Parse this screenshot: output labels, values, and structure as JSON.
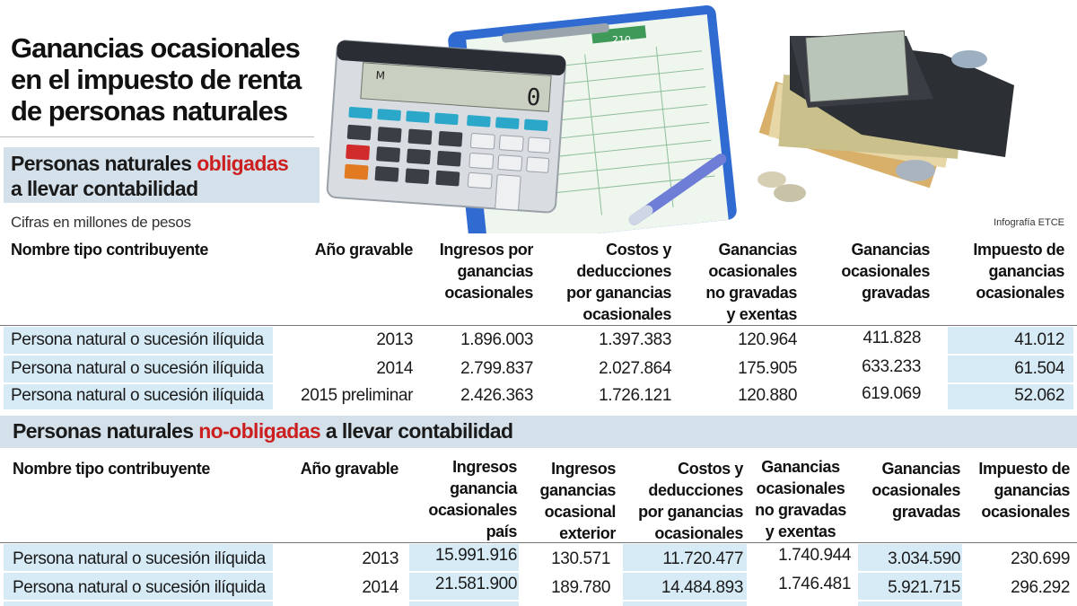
{
  "title": "Ganancias ocasionales en el impuesto de renta de personas naturales",
  "title_lines": [
    "Ganancias ocasionales",
    "en el impuesto de renta",
    "de personas naturales"
  ],
  "credit": "Infografía ETCE",
  "units_note": "Cifras en millones de pesos",
  "calculator_display": "0",
  "calculator_mode": "M",
  "form_number": "210",
  "section1": {
    "title_pre": "Personas naturales ",
    "title_red": "obligadas",
    "title_post": "a llevar contabilidad",
    "headers": {
      "tipo": "Nombre tipo contribuyente",
      "anio": "Año gravable",
      "ingresos": [
        "Ingresos por",
        "ganancias",
        "ocasionales"
      ],
      "costos": [
        "Costos y",
        "deducciones",
        "por ganancias",
        "ocasionales"
      ],
      "no_gravadas": [
        "Ganancias",
        "ocasionales",
        "no gravadas",
        "y exentas"
      ],
      "gravadas": [
        "Ganancias",
        "ocasionales",
        "gravadas"
      ],
      "impuesto": [
        "Impuesto de",
        "ganancias",
        "ocasionales"
      ]
    },
    "rows": [
      {
        "tipo": "Persona natural o sucesión ilíquida",
        "anio": "2013",
        "ingresos": "1.896.003",
        "costos": "1.397.383",
        "no_gravadas": "120.964",
        "gravadas": "411.828",
        "impuesto": "41.012"
      },
      {
        "tipo": "Persona natural o sucesión ilíquida",
        "anio": "2014",
        "ingresos": "2.799.837",
        "costos": "2.027.864",
        "no_gravadas": "175.905",
        "gravadas": "633.233",
        "impuesto": "61.504"
      },
      {
        "tipo": "Persona natural o sucesión ilíquida",
        "anio": "2015 preliminar",
        "ingresos": "2.426.363",
        "costos": "1.726.121",
        "no_gravadas": "120.880",
        "gravadas": "619.069",
        "impuesto": "52.062"
      }
    ]
  },
  "section2": {
    "title_pre": "Personas naturales ",
    "title_red": "no-obligadas",
    "title_post": " a llevar contabilidad",
    "headers": {
      "tipo": "Nombre tipo contribuyente",
      "anio": "Año gravable",
      "ingresos_pais": [
        "Ingresos",
        "ganancia",
        "ocasionales",
        "país"
      ],
      "ingresos_ext": [
        "Ingresos",
        "ganancias",
        "ocasional",
        "exterior"
      ],
      "costos": [
        "Costos y",
        "deducciones",
        "por ganancias",
        "ocasionales"
      ],
      "no_gravadas": [
        "Ganancias",
        "ocasionales",
        "no gravadas",
        "y exentas"
      ],
      "gravadas": [
        "Ganancias",
        "ocasionales",
        "gravadas"
      ],
      "impuesto": [
        "Impuesto de",
        "ganancias",
        "ocasionales"
      ]
    },
    "rows": [
      {
        "tipo": "Persona natural o sucesión ilíquida",
        "anio": "2013",
        "ingresos_pais": "15.991.916",
        "ingresos_ext": "130.571",
        "costos": "11.720.477",
        "no_gravadas": "1.740.944",
        "gravadas": "3.034.590",
        "impuesto": "230.699"
      },
      {
        "tipo": "Persona natural o sucesión ilíquida",
        "anio": "2014",
        "ingresos_pais": "21.581.900",
        "ingresos_ext": "189.780",
        "costos": "14.484.893",
        "no_gravadas": "1.746.481",
        "gravadas": "5.921.715",
        "impuesto": "296.292"
      }
    ]
  }
}
